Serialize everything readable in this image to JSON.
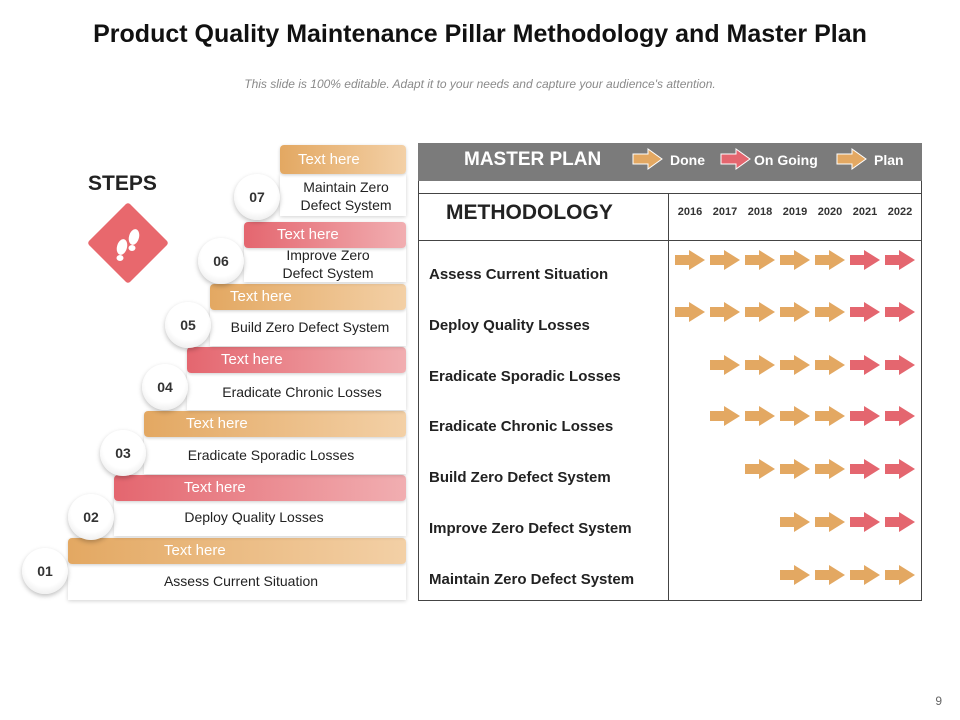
{
  "title": "Product Quality Maintenance Pillar Methodology and Master Plan",
  "subtitle": "This slide is 100% editable. Adapt it to your needs and capture your audience's attention.",
  "steps_label": "STEPS",
  "steps": [
    {
      "num": "01",
      "header": "Text here",
      "text": "Assess Current Situation",
      "color": "orange"
    },
    {
      "num": "02",
      "header": "Text here",
      "text": "Deploy Quality Losses",
      "color": "red"
    },
    {
      "num": "03",
      "header": "Text here",
      "text": "Eradicate Sporadic Losses",
      "color": "orange"
    },
    {
      "num": "04",
      "header": "Text here",
      "text": "Eradicate Chronic Losses",
      "color": "red"
    },
    {
      "num": "05",
      "header": "Text here",
      "text": "Build Zero Defect System",
      "color": "orange"
    },
    {
      "num": "06",
      "header": "Text here",
      "text": "Improve Zero Defect System",
      "color": "red"
    },
    {
      "num": "07",
      "header": "Text here",
      "text": "Maintain Zero Defect System",
      "color": "orange"
    }
  ],
  "master_plan": {
    "title": "MASTER PLAN",
    "legend": [
      "Done",
      "On Going",
      "Plan"
    ],
    "methodology_title": "METHODOLOGY",
    "years": [
      "2016",
      "2017",
      "2018",
      "2019",
      "2020",
      "2021",
      "2022"
    ],
    "rows": [
      {
        "label": "Assess Current Situation",
        "cells": [
          "done",
          "done",
          "done",
          "done",
          "done",
          "ongoing",
          "ongoing"
        ]
      },
      {
        "label": "Deploy Quality Losses",
        "cells": [
          "done",
          "done",
          "done",
          "done",
          "done",
          "ongoing",
          "ongoing"
        ]
      },
      {
        "label": "Eradicate Sporadic Losses",
        "cells": [
          "",
          "done",
          "done",
          "done",
          "done",
          "ongoing",
          "ongoing"
        ]
      },
      {
        "label": "Eradicate Chronic Losses",
        "cells": [
          "",
          "done",
          "done",
          "done",
          "done",
          "ongoing",
          "ongoing"
        ]
      },
      {
        "label": "Build Zero Defect System",
        "cells": [
          "",
          "",
          "done",
          "done",
          "done",
          "ongoing",
          "ongoing"
        ]
      },
      {
        "label": "Improve Zero Defect System",
        "cells": [
          "",
          "",
          "",
          "done",
          "done",
          "ongoing",
          "ongoing"
        ]
      },
      {
        "label": "Maintain Zero Defect System",
        "cells": [
          "",
          "",
          "",
          "done",
          "done",
          "done",
          "done"
        ]
      }
    ]
  },
  "colors": {
    "orange": "#e3a862",
    "red": "#e4666f",
    "header_gray": "#7b7b7b"
  },
  "page_number": "9"
}
